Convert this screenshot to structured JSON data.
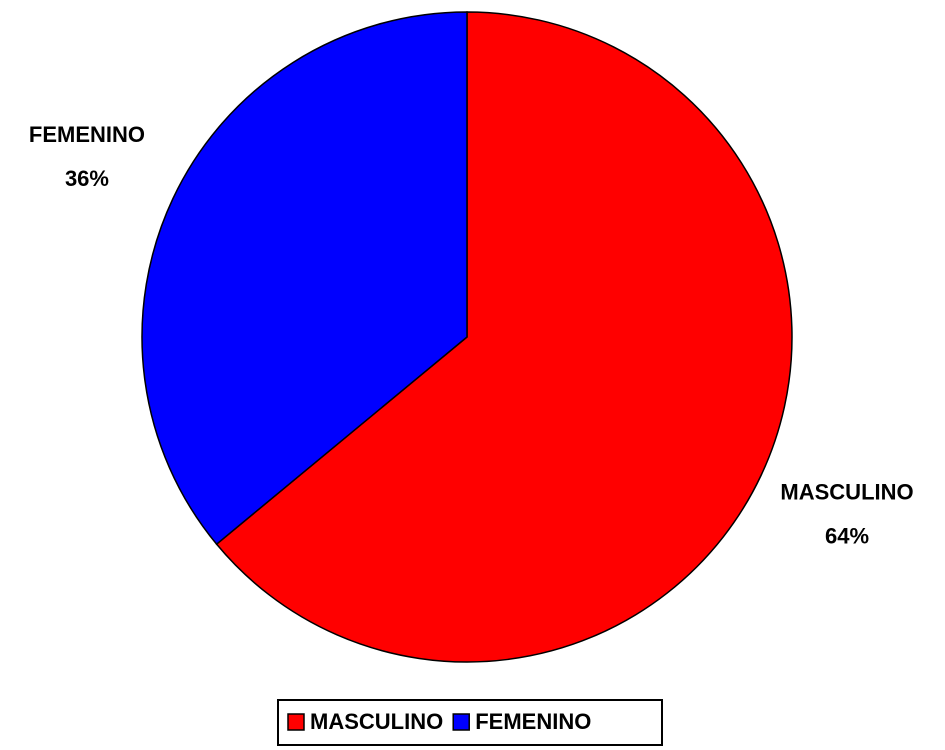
{
  "chart_data": {
    "type": "pie",
    "categories": [
      "MASCULINO",
      "FEMENINO"
    ],
    "values": [
      64,
      36
    ],
    "value_labels": [
      "64%",
      "36%"
    ],
    "colors": [
      "#ff0000",
      "#0000ff"
    ],
    "legend": "bottom"
  }
}
